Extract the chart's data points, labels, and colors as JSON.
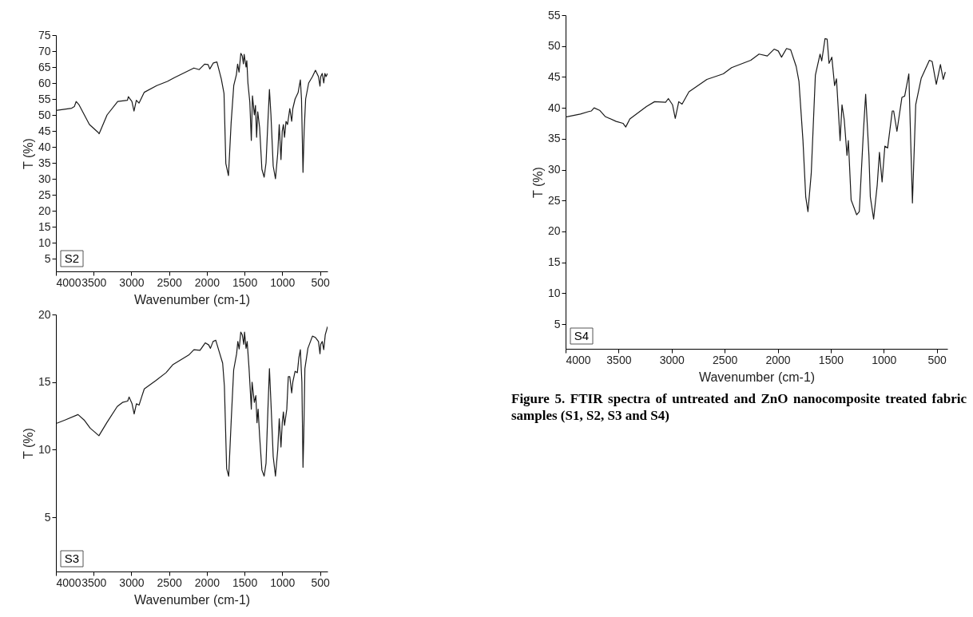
{
  "chart_data": [
    {
      "type": "line",
      "title": "S2",
      "xlabel": "Wavenumber (cm-1)",
      "ylabel": "T (%)",
      "xlim": [
        4000,
        400
      ],
      "ylim": [
        1,
        75
      ],
      "xticks": [
        4000,
        3500,
        3000,
        2500,
        2000,
        1500,
        1000,
        500
      ],
      "yticks": [
        5,
        10,
        15,
        20,
        25,
        30,
        35,
        40,
        45,
        50,
        55,
        60,
        65,
        70,
        75
      ],
      "x": [
        4000,
        3791,
        3756,
        3732,
        3697,
        3556,
        3439,
        3427,
        3322,
        3181,
        3052,
        3040,
        2993,
        2965,
        2934,
        2899,
        2829,
        2664,
        2523,
        2429,
        2171,
        2101,
        2030,
        1984,
        1960,
        1913,
        1866,
        1808,
        1772,
        1748,
        1713,
        1678,
        1643,
        1608,
        1592,
        1573,
        1549,
        1530,
        1515,
        1505,
        1480,
        1470,
        1455,
        1430,
        1410,
        1395,
        1370,
        1355,
        1340,
        1325,
        1300,
        1270,
        1240,
        1215,
        1190,
        1170,
        1150,
        1120,
        1090,
        1060,
        1040,
        1030,
        1017,
        1000,
        985,
        970,
        950,
        930,
        900,
        875,
        860,
        830,
        790,
        760,
        745,
        725,
        710,
        690,
        650,
        600,
        560,
        520,
        500,
        490,
        470,
        450,
        435,
        420,
        400
      ],
      "series": [
        {
          "color": "#1a1a1a",
          "values": [
            51.4,
            52.1,
            52.6,
            54.2,
            53.3,
            47.0,
            44.5,
            44.1,
            50.0,
            54.2,
            54.6,
            55.7,
            54.2,
            51.2,
            54.6,
            53.7,
            57.1,
            59.2,
            60.5,
            61.7,
            64.7,
            64.2,
            65.9,
            65.8,
            64.4,
            66.3,
            66.6,
            61.3,
            56.7,
            34.8,
            31.0,
            47.4,
            59.2,
            62.6,
            65.9,
            63.4,
            69.3,
            68.5,
            66,
            69,
            65,
            67,
            60,
            54,
            42,
            56,
            50,
            53,
            43,
            51,
            46,
            33,
            30.5,
            35,
            48,
            58,
            50,
            34,
            30,
            38,
            47,
            42,
            36,
            45,
            47,
            43,
            48,
            47,
            52,
            48,
            52,
            55,
            57,
            61,
            55,
            32,
            45,
            55,
            60,
            62,
            64,
            62,
            59,
            62,
            63,
            60,
            63,
            62,
            63
          ]
        }
      ]
    },
    {
      "type": "line",
      "title": "S3",
      "xlabel": "Wavenumber (cm-1)",
      "ylabel": "T (%)",
      "xlim": [
        4000,
        400
      ],
      "ylim": [
        1,
        20
      ],
      "xticks": [
        4000,
        3500,
        3000,
        2500,
        2000,
        1500,
        1000,
        500
      ],
      "yticks": [
        5,
        10,
        15,
        20
      ],
      "x": [
        3988,
        3880,
        3707,
        3626,
        3546,
        3430,
        3326,
        3187,
        3118,
        3049,
        3030,
        2991,
        2963,
        2933,
        2898,
        2864,
        2829,
        2679,
        2540,
        2448,
        2240,
        2171,
        2090,
        2021,
        1975,
        1952,
        1917,
        1882,
        1836,
        1790,
        1767,
        1737,
        1710,
        1675,
        1644,
        1605,
        1589,
        1571,
        1550,
        1530,
        1510,
        1500,
        1480,
        1465,
        1440,
        1410,
        1400,
        1370,
        1350,
        1335,
        1320,
        1300,
        1270,
        1240,
        1215,
        1190,
        1170,
        1150,
        1120,
        1090,
        1060,
        1040,
        1017,
        1000,
        985,
        970,
        940,
        920,
        900,
        875,
        860,
        830,
        800,
        780,
        760,
        740,
        725,
        715,
        700,
        660,
        600,
        560,
        520,
        500,
        490,
        470,
        450,
        430,
        400
      ],
      "series": [
        {
          "color": "#1a1a1a",
          "values": [
            11.96,
            12.2,
            12.6,
            12.2,
            11.6,
            11.04,
            12.0,
            13.2,
            13.5,
            13.6,
            13.9,
            13.4,
            12.65,
            13.4,
            13.3,
            13.9,
            14.5,
            15.1,
            15.7,
            16.3,
            17.0,
            17.4,
            17.35,
            17.9,
            17.75,
            17.5,
            18.0,
            18.1,
            17.25,
            16.4,
            14.7,
            8.6,
            8.04,
            12.35,
            15.9,
            17.1,
            18.0,
            17.45,
            18.7,
            18.5,
            17.8,
            18.7,
            17.5,
            18.0,
            16.0,
            13.0,
            15.0,
            13.5,
            14,
            12.0,
            13.0,
            11,
            8.5,
            8.05,
            9,
            13,
            16.0,
            13.5,
            9.5,
            8.05,
            10,
            12.3,
            10.2,
            12,
            12.8,
            11.8,
            13,
            15.4,
            15.4,
            14.2,
            15,
            15.8,
            15.7,
            16.8,
            17.4,
            15,
            8.7,
            11,
            16,
            17.5,
            18.4,
            18.3,
            18.0,
            17.1,
            17.8,
            18.0,
            17.4,
            18.5,
            19.1
          ]
        }
      ]
    },
    {
      "type": "line",
      "title": "S4",
      "xlabel": "Wavenumber (cm-1)",
      "ylabel": "T (%)",
      "xlim": [
        4000,
        400
      ],
      "ylim": [
        1,
        55
      ],
      "xticks": [
        4000,
        3500,
        3000,
        2500,
        2000,
        1500,
        1000,
        500
      ],
      "yticks": [
        5,
        10,
        15,
        20,
        25,
        30,
        35,
        40,
        45,
        50,
        55
      ],
      "annotations": [
        "Figure 5. FTIR spectra of untreated and ZnO nanocomposite treated fabric samples (S1, S2, S3 and S4)"
      ],
      "x": [
        4000,
        3860,
        3782,
        3756,
        3731,
        3679,
        3627,
        3523,
        3459,
        3433,
        3394,
        3238,
        3161,
        3057,
        3031,
        2992,
        2966,
        2933,
        2902,
        2837,
        2668,
        2513,
        2435,
        2254,
        2176,
        2098,
        2034,
        1995,
        1964,
        1917,
        1878,
        1826,
        1800,
        1762,
        1736,
        1715,
        1684,
        1645,
        1601,
        1585,
        1554,
        1534,
        1516,
        1490,
        1464,
        1446,
        1412,
        1394,
        1373,
        1347,
        1334,
        1308,
        1256,
        1231,
        1192,
        1171,
        1140,
        1127,
        1096,
        1062,
        1041,
        1016,
        990,
        964,
        920,
        907,
        876,
        829,
        803,
        764,
        730,
        699,
        647,
        570,
        544,
        505,
        466,
        440,
        420
      ],
      "series": [
        {
          "color": "#1a1a1a",
          "values": [
            38.5,
            39.0,
            39.4,
            39.5,
            40.0,
            39.6,
            38.6,
            37.8,
            37.5,
            36.9,
            38.2,
            40.2,
            41.0,
            40.9,
            41.5,
            40.5,
            38.3,
            41.0,
            40.6,
            42.6,
            44.6,
            45.5,
            46.5,
            47.7,
            48.7,
            48.4,
            49.5,
            49.2,
            48.2,
            49.6,
            49.4,
            46.7,
            44.3,
            34.7,
            25.6,
            23.2,
            29.4,
            45.3,
            48.7,
            47.6,
            51.2,
            51.1,
            47.2,
            48.2,
            43.6,
            44.7,
            34.7,
            40.5,
            38.1,
            32.3,
            34.7,
            25.1,
            22.7,
            23.2,
            36.2,
            42.2,
            32.3,
            25.6,
            22,
            27.5,
            32.8,
            28.0,
            33.8,
            33.5,
            39.5,
            39.5,
            36.2,
            41.7,
            41.9,
            45.5,
            24.6,
            40.5,
            44.8,
            47.7,
            47.5,
            43.8,
            47.0,
            44.6,
            45.8
          ]
        }
      ]
    }
  ]
}
